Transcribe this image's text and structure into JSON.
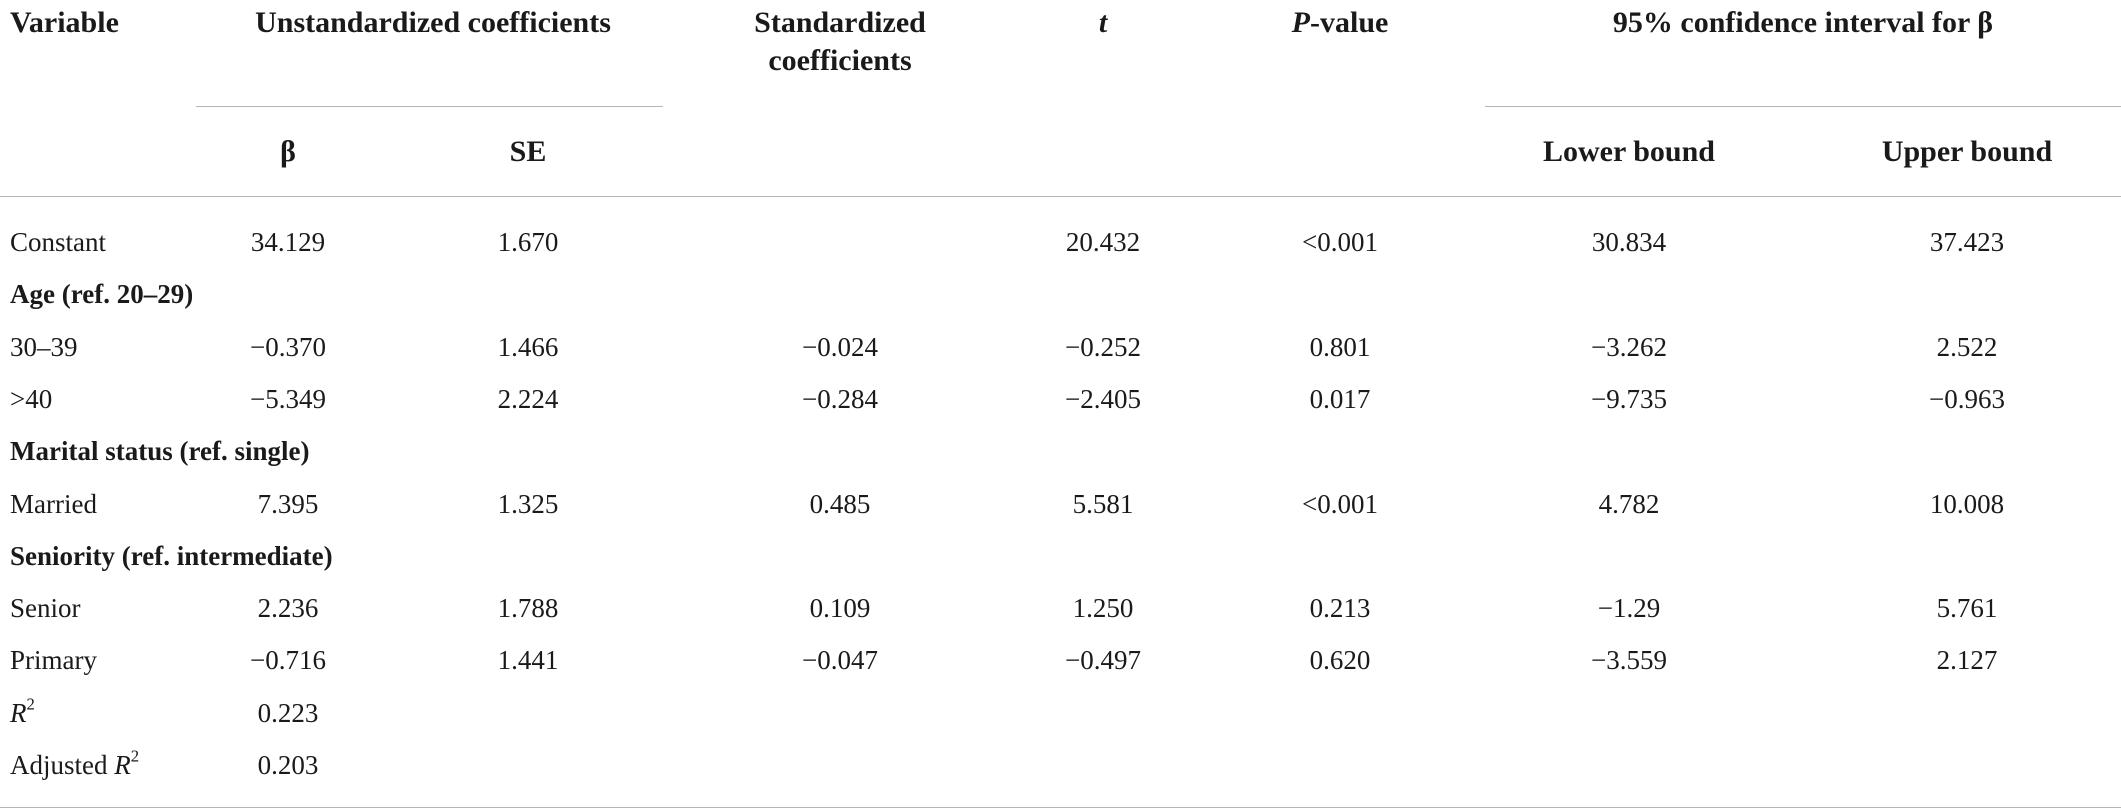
{
  "header": {
    "row1": [
      {
        "parts": [
          {
            "text": "Variable"
          }
        ]
      },
      {
        "parts": [
          {
            "text": "Unstandardized coefficients"
          }
        ]
      },
      {
        "parts": [
          {
            "text": "Standardized coefficients"
          }
        ]
      },
      {
        "parts": [
          {
            "text": "t",
            "italic": true
          }
        ]
      },
      {
        "parts": [
          {
            "text": "P",
            "italic": true
          },
          {
            "text": "-value"
          }
        ]
      },
      {
        "parts": [
          {
            "text": "95% confidence interval for β"
          }
        ]
      }
    ],
    "row2": [
      "β",
      "SE",
      "Lower bound",
      "Upper bound"
    ]
  },
  "table": {
    "rows": [
      {
        "label": [
          {
            "text": "Constant"
          }
        ],
        "cells": [
          "34.129",
          "1.670",
          null,
          "20.432",
          "<0.001",
          "30.834",
          "37.423"
        ]
      },
      {
        "label": [
          {
            "text": "Age (ref. 20–29)"
          }
        ],
        "group": true
      },
      {
        "label": [
          {
            "text": "30–39"
          }
        ],
        "cells": [
          "−0.370",
          "1.466",
          "−0.024",
          "−0.252",
          "0.801",
          "−3.262",
          "2.522"
        ]
      },
      {
        "label": [
          {
            "text": ">40"
          }
        ],
        "cells": [
          "−5.349",
          "2.224",
          "−0.284",
          "−2.405",
          "0.017",
          "−9.735",
          "−0.963"
        ]
      },
      {
        "label": [
          {
            "text": "Marital status (ref. single)"
          }
        ],
        "group": true
      },
      {
        "label": [
          {
            "text": "Married"
          }
        ],
        "cells": [
          "7.395",
          "1.325",
          "0.485",
          "5.581",
          "<0.001",
          "4.782",
          "10.008"
        ]
      },
      {
        "label": [
          {
            "text": "Seniority (ref. intermediate)"
          }
        ],
        "group": true
      },
      {
        "label": [
          {
            "text": "Senior"
          }
        ],
        "cells": [
          "2.236",
          "1.788",
          "0.109",
          "1.250",
          "0.213",
          "−1.29",
          "5.761"
        ]
      },
      {
        "label": [
          {
            "text": "Primary"
          }
        ],
        "cells": [
          "−0.716",
          "1.441",
          "−0.047",
          "−0.497",
          "0.620",
          "−3.559",
          "2.127"
        ]
      },
      {
        "label": [
          {
            "text": "R",
            "italic": true
          },
          {
            "text": "2",
            "sup": true
          }
        ],
        "cells": [
          "0.223",
          null,
          null,
          null,
          null,
          null,
          null
        ]
      },
      {
        "label": [
          {
            "text": "Adjusted "
          },
          {
            "text": "R",
            "italic": true
          },
          {
            "text": "2",
            "sup": true
          }
        ],
        "cells": [
          "0.203",
          null,
          null,
          null,
          null,
          null,
          null
        ]
      }
    ]
  }
}
